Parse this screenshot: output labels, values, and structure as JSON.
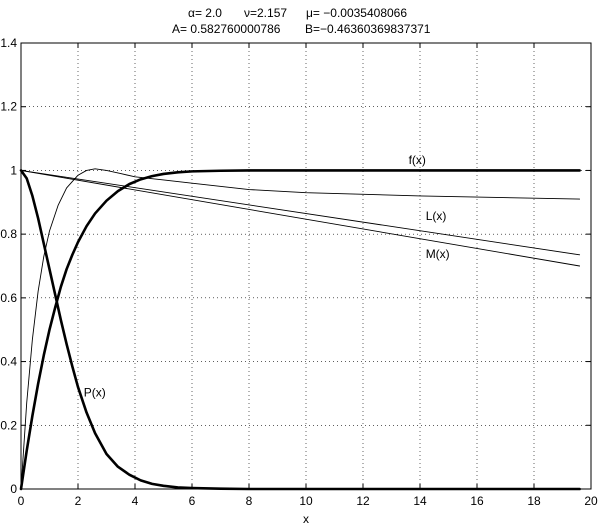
{
  "chart_data": {
    "type": "line",
    "title_lines": [
      [
        "α= 2.0",
        "ν=2.157",
        "μ= −0.0035408066"
      ],
      [
        "A= 0.582760000786",
        "B=−0.46360369837371"
      ]
    ],
    "xlabel": "x",
    "ylabel": "",
    "xlim": [
      0,
      20
    ],
    "ylim": [
      0,
      1.4
    ],
    "xticks": [
      0,
      2,
      4,
      6,
      8,
      10,
      12,
      14,
      16,
      18,
      20
    ],
    "yticks": [
      0,
      0.2,
      0.4,
      0.6,
      0.8,
      1,
      1.2,
      1.4
    ],
    "xtick_labels": [
      "0",
      "2",
      "4",
      "6",
      "8",
      "10",
      "12",
      "14",
      "16",
      "18",
      "20"
    ],
    "ytick_labels": [
      "0",
      "0.2",
      "0.4",
      "0.6",
      "0.8",
      "1",
      "1.2",
      "1.4"
    ],
    "grid": true,
    "series": [
      {
        "name": "f(x)",
        "weight": "bold",
        "label_at": [
          13.6,
          1.02
        ],
        "x": [
          0,
          0.2,
          0.4,
          0.6,
          0.8,
          1.0,
          1.2,
          1.4,
          1.6,
          1.8,
          2.0,
          2.3,
          2.6,
          3.0,
          3.4,
          3.8,
          4.2,
          4.6,
          5.0,
          5.5,
          6.0,
          7.0,
          8.0,
          10.0,
          12.0,
          15.0,
          19.6
        ],
        "y": [
          0,
          0.12,
          0.23,
          0.33,
          0.42,
          0.5,
          0.57,
          0.635,
          0.69,
          0.735,
          0.775,
          0.825,
          0.865,
          0.905,
          0.935,
          0.957,
          0.972,
          0.982,
          0.989,
          0.994,
          0.997,
          0.999,
          1.0,
          1.0,
          1.0,
          1.0,
          1.0
        ]
      },
      {
        "name": "P(x)",
        "weight": "bold",
        "label_at": [
          2.2,
          0.29
        ],
        "x": [
          0,
          0.2,
          0.4,
          0.6,
          0.8,
          1.0,
          1.2,
          1.4,
          1.6,
          1.8,
          2.0,
          2.3,
          2.6,
          3.0,
          3.4,
          3.8,
          4.2,
          4.6,
          5.0,
          5.5,
          6.0,
          7.0,
          8.0,
          10.0,
          14.0,
          19.6
        ],
        "y": [
          1.0,
          0.975,
          0.92,
          0.85,
          0.77,
          0.69,
          0.61,
          0.53,
          0.455,
          0.385,
          0.32,
          0.24,
          0.175,
          0.11,
          0.07,
          0.045,
          0.027,
          0.016,
          0.01,
          0.005,
          0.003,
          0.001,
          0.0,
          0.0,
          0.0,
          0.0
        ]
      },
      {
        "name": "L(x)",
        "weight": "thin",
        "label_at": [
          14.2,
          0.845
        ],
        "x": [
          0,
          19.6
        ],
        "y": [
          1.0,
          0.735
        ]
      },
      {
        "name": "M(x)",
        "weight": "thin",
        "label_at": [
          14.2,
          0.725
        ],
        "x": [
          0,
          19.6
        ],
        "y": [
          1.0,
          0.7
        ]
      },
      {
        "name": "",
        "weight": "thin",
        "label_at": null,
        "x": [
          0,
          0.2,
          0.4,
          0.6,
          0.8,
          1.0,
          1.3,
          1.6,
          2.0,
          2.3,
          2.6,
          3.0,
          3.5,
          4.0,
          5.0,
          6.0,
          8.0,
          10.0,
          14.0,
          19.6
        ],
        "y": [
          0,
          0.27,
          0.47,
          0.62,
          0.73,
          0.81,
          0.89,
          0.945,
          0.985,
          1.0,
          1.005,
          1.0,
          0.99,
          0.98,
          0.97,
          0.96,
          0.94,
          0.93,
          0.92,
          0.91
        ]
      }
    ]
  }
}
